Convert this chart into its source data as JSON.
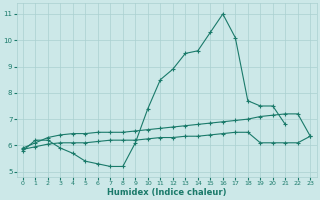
{
  "xlabel": "Humidex (Indice chaleur)",
  "x_values": [
    0,
    1,
    2,
    3,
    4,
    5,
    6,
    7,
    8,
    9,
    10,
    11,
    12,
    13,
    14,
    15,
    16,
    17,
    18,
    19,
    20,
    21,
    22,
    23
  ],
  "line1_y": [
    5.8,
    6.2,
    6.2,
    5.9,
    5.7,
    5.4,
    5.3,
    5.2,
    5.2,
    6.1,
    7.4,
    8.5,
    8.9,
    9.5,
    9.6,
    10.3,
    11.0,
    10.1,
    7.7,
    7.5,
    7.5,
    6.8,
    null,
    null
  ],
  "line2_y": [
    5.9,
    6.1,
    6.3,
    6.4,
    6.45,
    6.45,
    6.5,
    6.5,
    6.5,
    6.55,
    6.6,
    6.65,
    6.7,
    6.75,
    6.8,
    6.85,
    6.9,
    6.95,
    7.0,
    7.1,
    7.15,
    7.2,
    7.2,
    6.35
  ],
  "line3_y": [
    5.85,
    5.95,
    6.05,
    6.1,
    6.1,
    6.1,
    6.15,
    6.2,
    6.2,
    6.2,
    6.25,
    6.3,
    6.3,
    6.35,
    6.35,
    6.4,
    6.45,
    6.5,
    6.5,
    6.1,
    6.1,
    6.1,
    6.1,
    6.35
  ],
  "line_color": "#1a7a6a",
  "bg_color": "#cce8e8",
  "grid_color": "#aad0d0",
  "ylim": [
    4.8,
    11.4
  ],
  "xlim": [
    -0.5,
    23.5
  ],
  "yticks": [
    5,
    6,
    7,
    8,
    9,
    10,
    11
  ],
  "xticks": [
    0,
    1,
    2,
    3,
    4,
    5,
    6,
    7,
    8,
    9,
    10,
    11,
    12,
    13,
    14,
    15,
    16,
    17,
    18,
    19,
    20,
    21,
    22,
    23
  ]
}
